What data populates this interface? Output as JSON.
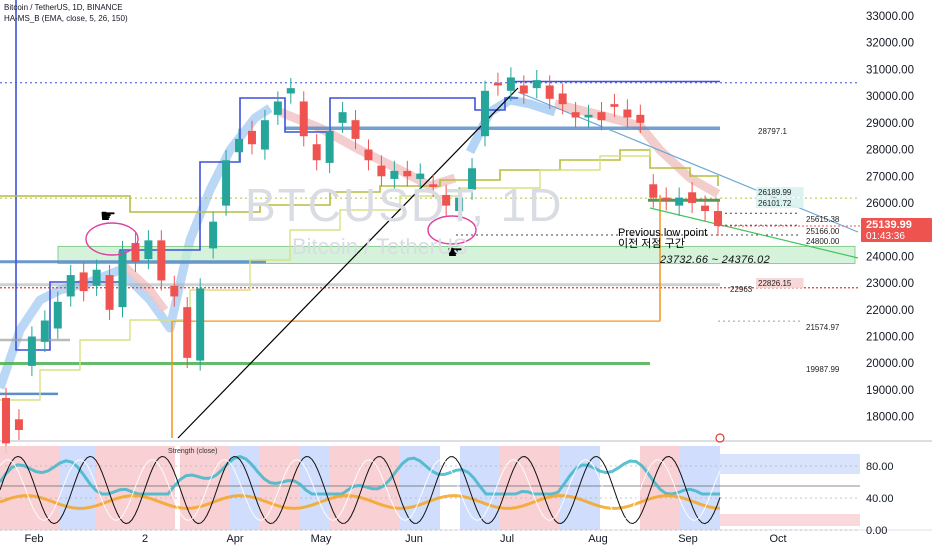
{
  "header": {
    "symbol_line": "Bitcoin / TetherUS, 1D, BINANCE",
    "indicator_line": "HA-MS_B (EMA, close, 5, 26, 150)"
  },
  "watermark": {
    "ticker": "BTCUSDT, 1D",
    "name": "Bitcoin / TetherUS"
  },
  "colors": {
    "up": "#26a69a",
    "down": "#ef5350",
    "blue_line": "#3f51d8",
    "steel_line": "#5b8fc9",
    "olive_line": "#b5bd3f",
    "orange_line": "#f7931a",
    "green_line": "#4caf50",
    "red_dotted": "#e53935",
    "price_badge": "#ef5350",
    "pink_circle": "#e040a0"
  },
  "chart_data": {
    "type": "candlestick",
    "y_axis": {
      "ticks": [
        18000,
        19000,
        20000,
        21000,
        22000,
        23000,
        24000,
        25000,
        26000,
        27000,
        28000,
        29000,
        30000,
        31000,
        32000,
        33000
      ],
      "range": [
        17200,
        33600
      ]
    },
    "x_axis": {
      "ticks": [
        "Feb",
        "2",
        "Apr",
        "May",
        "Jun",
        "Jul",
        "Aug",
        "Sep",
        "Oct"
      ]
    },
    "series_price": [
      [
        18700,
        17000
      ],
      [
        17900,
        17500
      ],
      [
        19900,
        21000
      ],
      [
        20800,
        21600
      ],
      [
        21300,
        22300
      ],
      [
        22500,
        23300
      ],
      [
        23400,
        22700
      ],
      [
        22900,
        23500
      ],
      [
        23300,
        22000
      ],
      [
        22100,
        24200
      ],
      [
        24500,
        23800
      ],
      [
        23900,
        24600
      ],
      [
        24600,
        23100
      ],
      [
        22900,
        22500
      ],
      [
        22100,
        20200
      ],
      [
        20100,
        22800
      ],
      [
        24300,
        25300
      ],
      [
        25900,
        27600
      ],
      [
        27900,
        28400
      ],
      [
        28700,
        28200
      ],
      [
        28000,
        29100
      ],
      [
        29300,
        29800
      ],
      [
        30100,
        30300
      ],
      [
        29800,
        28500
      ],
      [
        28200,
        27600
      ],
      [
        27500,
        28700
      ],
      [
        29000,
        29400
      ],
      [
        29100,
        28400
      ],
      [
        28000,
        27600
      ],
      [
        27400,
        27000
      ],
      [
        26900,
        27200
      ],
      [
        27200,
        27000
      ],
      [
        26900,
        27100
      ],
      [
        26700,
        26600
      ],
      [
        26300,
        25900
      ],
      [
        25700,
        26200
      ],
      [
        26500,
        27300
      ],
      [
        28500,
        30200
      ],
      [
        30500,
        30400
      ],
      [
        30200,
        30700
      ],
      [
        30400,
        30100
      ],
      [
        30300,
        30600
      ],
      [
        30400,
        29900
      ],
      [
        30100,
        29700
      ],
      [
        29400,
        29200
      ],
      [
        29200,
        29300
      ],
      [
        29400,
        29100
      ],
      [
        29700,
        29600
      ],
      [
        29500,
        29200
      ],
      [
        29300,
        29000
      ],
      [
        26700,
        26200
      ],
      [
        26200,
        26100
      ],
      [
        25900,
        26200
      ],
      [
        26400,
        26000
      ],
      [
        25900,
        25700
      ],
      [
        25700,
        25140
      ]
    ],
    "levels": [
      {
        "label": "28797.1",
        "value": 28797.1
      },
      {
        "label": "26189.99",
        "value": 26189.99
      },
      {
        "label": "26101.72",
        "value": 26101.72
      },
      {
        "label": "25615.38",
        "value": 25615.38
      },
      {
        "label": "25166.00",
        "value": 25166.0
      },
      {
        "label": "24800.00",
        "value": 24800.0
      },
      {
        "label": "22826.15",
        "value": 22826.15
      },
      {
        "label": "22963",
        "value": 22963
      },
      {
        "label": "21574.97",
        "value": 21574.97
      },
      {
        "label": "19987.99",
        "value": 19987.99
      }
    ],
    "zone": {
      "low": 23732.66,
      "high": 24376.02,
      "label": "23732.66 ~ 24376.02"
    },
    "annotations": {
      "line1": "Previous low point",
      "line2": "이전 저점 구간"
    },
    "current_price": {
      "value": 25139.99,
      "label": "25139.99",
      "countdown": "01:43:36"
    },
    "oscillator": {
      "title": "Strength (close)",
      "ticks": [
        0,
        40,
        80
      ],
      "tick_labels": [
        "0.00",
        "40.00",
        "80.00"
      ]
    }
  }
}
